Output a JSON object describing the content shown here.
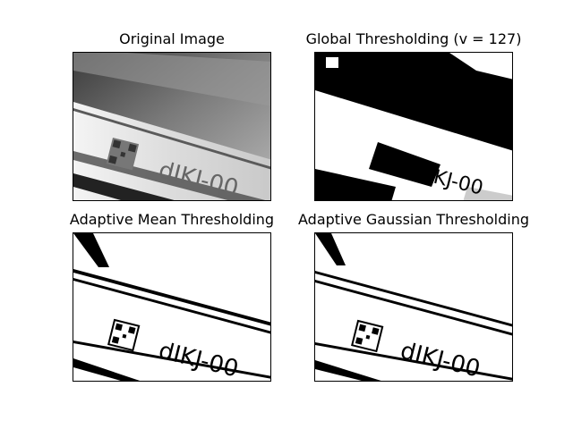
{
  "figure": {
    "panels": [
      {
        "title": "Original Image"
      },
      {
        "title": "Global Thresholding (v = 127)"
      },
      {
        "title": "Adaptive Mean Thresholding"
      },
      {
        "title": "Adaptive Gaussian Thresholding"
      }
    ],
    "label_text": "dIKJ-00"
  }
}
